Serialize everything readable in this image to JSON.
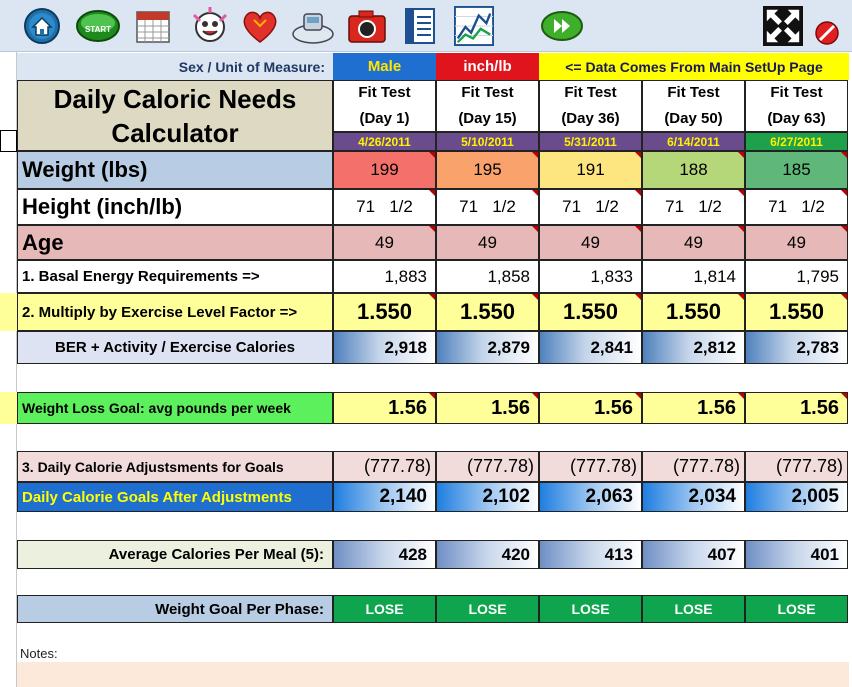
{
  "toolbar": {
    "start_label": "START",
    "icons": [
      "home-icon",
      "start-icon",
      "calendar-icon",
      "face-icon",
      "heart-icon",
      "scale-icon",
      "camera-icon",
      "notes-icon",
      "chart-icon",
      "next-icon",
      "fullscreen-icon",
      "close-icon"
    ]
  },
  "header": {
    "sex_unit_label": "Sex / Unit of Measure:",
    "sex": "Male",
    "unit": "inch/lb",
    "note": "<= Data Comes From Main SetUp Page",
    "title_line1": "Daily Caloric Needs",
    "title_line2": "Calculator"
  },
  "columns": [
    {
      "fit": "Fit Test",
      "day": "(Day 1)",
      "date": "4/26/2011",
      "weight": "199",
      "height": "71   1/2",
      "age": "49",
      "ber": "1,883",
      "factor": "1.550",
      "ber_activity": "2,918",
      "loss_goal": "1.56",
      "adjust": "(777.78)",
      "goal": "2,140",
      "per_meal": "428",
      "phase": "LOSE"
    },
    {
      "fit": "Fit Test",
      "day": "(Day 15)",
      "date": "5/10/2011",
      "weight": "195",
      "height": "71   1/2",
      "age": "49",
      "ber": "1,858",
      "factor": "1.550",
      "ber_activity": "2,879",
      "loss_goal": "1.56",
      "adjust": "(777.78)",
      "goal": "2,102",
      "per_meal": "420",
      "phase": "LOSE"
    },
    {
      "fit": "Fit Test",
      "day": "(Day 36)",
      "date": "5/31/2011",
      "weight": "191",
      "height": "71   1/2",
      "age": "49",
      "ber": "1,833",
      "factor": "1.550",
      "ber_activity": "2,841",
      "loss_goal": "1.56",
      "adjust": "(777.78)",
      "goal": "2,063",
      "per_meal": "413",
      "phase": "LOSE"
    },
    {
      "fit": "Fit Test",
      "day": "(Day 50)",
      "date": "6/14/2011",
      "weight": "188",
      "height": "71   1/2",
      "age": "49",
      "ber": "1,814",
      "factor": "1.550",
      "ber_activity": "2,812",
      "loss_goal": "1.56",
      "adjust": "(777.78)",
      "goal": "2,034",
      "per_meal": "407",
      "phase": "LOSE"
    },
    {
      "fit": "Fit Test",
      "day": "(Day 63)",
      "date": "6/27/2011",
      "weight": "185",
      "height": "71   1/2",
      "age": "49",
      "ber": "1,795",
      "factor": "1.550",
      "ber_activity": "2,783",
      "loss_goal": "1.56",
      "adjust": "(777.78)",
      "goal": "2,005",
      "per_meal": "401",
      "phase": "LOSE"
    }
  ],
  "rows": {
    "weight": "Weight  (lbs)",
    "height": "Height  (inch/lb)",
    "age": "Age",
    "ber": "1.  Basal Energy Requirements =>",
    "factor": "2.  Multiply by Exercise Level Factor =>",
    "ber_activity": "BER + Activity / Exercise Calories",
    "loss_goal": "Weight Loss Goal: avg pounds per week",
    "adjust": "3.  Daily Calorie Adjustsments for Goals",
    "goal": "Daily Calorie Goals After Adjustments",
    "per_meal": "Average Calories Per Meal (5):",
    "phase": "Weight Goal Per Phase:"
  },
  "notes_label": "Notes:",
  "colors": {
    "weight": [
      "#f4716b",
      "#f9a26b",
      "#fde57f",
      "#b6d67a",
      "#5fb87a"
    ],
    "date_last": "#1fa04a"
  }
}
